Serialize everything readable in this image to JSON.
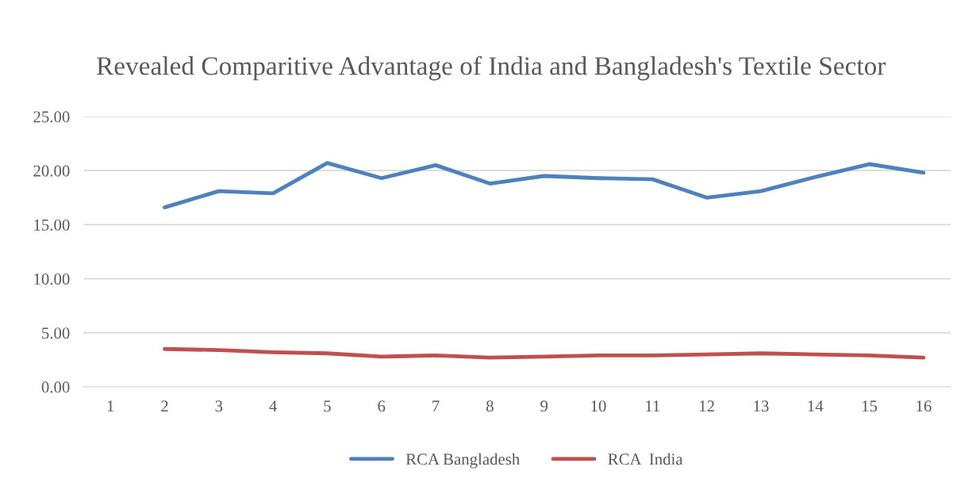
{
  "chart_data": {
    "type": "line",
    "title": "Revealed Comparitive Advantage of India and Bangladesh's Textile Sector",
    "categories": [
      "1",
      "2",
      "3",
      "4",
      "5",
      "6",
      "7",
      "8",
      "9",
      "10",
      "11",
      "12",
      "13",
      "14",
      "15",
      "16"
    ],
    "series": [
      {
        "name": "RCA Bangladesh",
        "color": "#4f81bd",
        "values": [
          null,
          16.6,
          18.1,
          17.9,
          20.7,
          19.3,
          20.5,
          18.8,
          19.5,
          19.3,
          19.2,
          17.5,
          18.1,
          19.4,
          20.6,
          19.8
        ]
      },
      {
        "name": "RCA  India",
        "color": "#c0504d",
        "values": [
          null,
          3.5,
          3.4,
          3.2,
          3.1,
          2.8,
          2.9,
          2.7,
          2.8,
          2.9,
          2.9,
          3.0,
          3.1,
          3.0,
          2.9,
          2.7
        ]
      }
    ],
    "ylim": [
      0,
      25
    ],
    "yticks": [
      {
        "value": 0,
        "label": "0.00"
      },
      {
        "value": 5,
        "label": "5.00"
      },
      {
        "value": 10,
        "label": "10.00"
      },
      {
        "value": 15,
        "label": "15.00"
      },
      {
        "value": 20,
        "label": "20.00"
      },
      {
        "value": 25,
        "label": "25.00"
      }
    ],
    "grid": "y",
    "legend": "bottom",
    "marker": "none",
    "line_style": "solid"
  }
}
